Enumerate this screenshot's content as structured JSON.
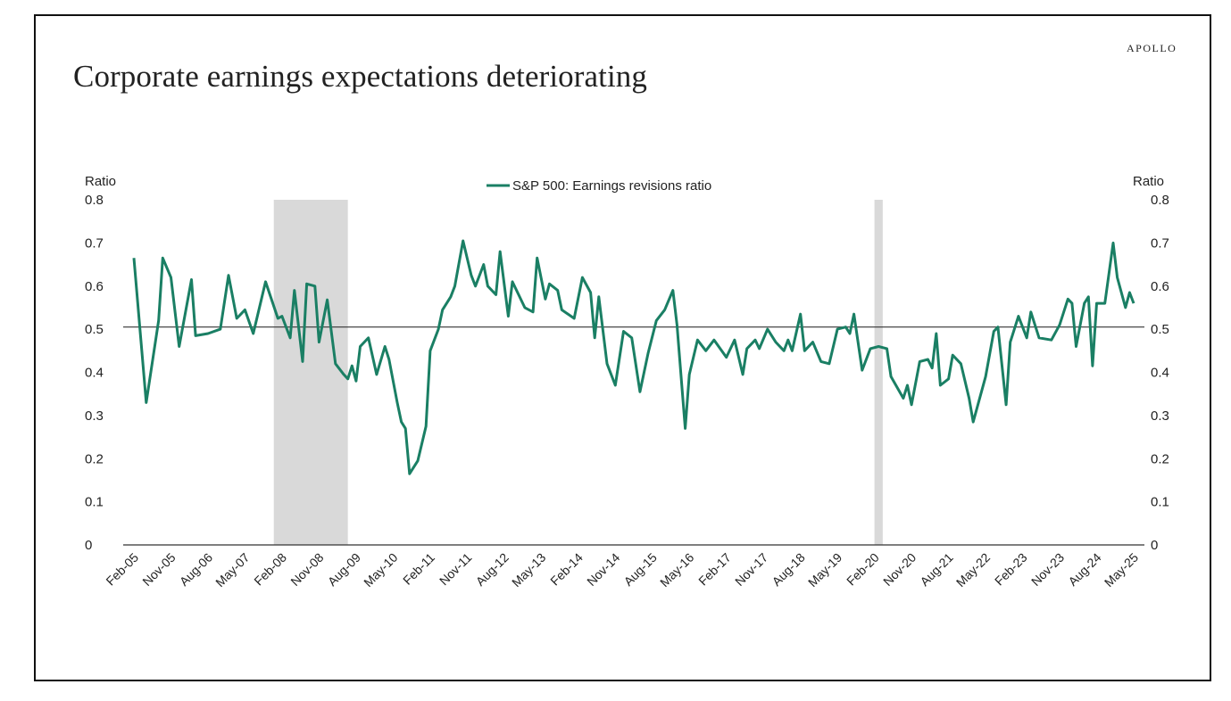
{
  "header": {
    "brand": "APOLLO",
    "title": "Corporate earnings expectations deteriorating"
  },
  "colors": {
    "line": "#1a7f64",
    "recession": "#d9d9d9",
    "axis": "#333333",
    "reference": "#333333"
  },
  "chart_data": {
    "type": "line",
    "title": "Corporate earnings expectations deteriorating",
    "ylabel_left": "Ratio",
    "ylabel_right": "Ratio",
    "ylim": [
      0,
      0.8
    ],
    "yticks": [
      "0.8",
      "0.7",
      "0.6",
      "0.5",
      "0.4",
      "0.3",
      "0.2",
      "0.1",
      "0"
    ],
    "xlim": [
      "2005-02",
      "2025-05"
    ],
    "xticks": [
      "Feb-05",
      "Nov-05",
      "Aug-06",
      "May-07",
      "Feb-08",
      "Nov-08",
      "Aug-09",
      "May-10",
      "Feb-11",
      "Nov-11",
      "Aug-12",
      "May-13",
      "Feb-14",
      "Nov-14",
      "Aug-15",
      "May-16",
      "Feb-17",
      "Nov-17",
      "Aug-18",
      "May-19",
      "Feb-20",
      "Nov-20",
      "Aug-21",
      "May-22",
      "Feb-23",
      "Nov-23",
      "Aug-24",
      "May-25"
    ],
    "reference_line": 0.505,
    "legend": {
      "position": "top-center"
    },
    "shaded_periods": [
      {
        "start": "2007-12",
        "end": "2009-06"
      },
      {
        "start": "2020-02",
        "end": "2020-04"
      }
    ],
    "grid": false,
    "series": [
      {
        "name": "S&P 500: Earnings revisions ratio",
        "points": [
          [
            "2005-02",
            0.665
          ],
          [
            "2005-05",
            0.33
          ],
          [
            "2005-08",
            0.52
          ],
          [
            "2005-09",
            0.665
          ],
          [
            "2005-11",
            0.62
          ],
          [
            "2006-01",
            0.46
          ],
          [
            "2006-04",
            0.615
          ],
          [
            "2006-05",
            0.485
          ],
          [
            "2006-08",
            0.49
          ],
          [
            "2006-11",
            0.5
          ],
          [
            "2007-01",
            0.625
          ],
          [
            "2007-03",
            0.525
          ],
          [
            "2007-05",
            0.545
          ],
          [
            "2007-07",
            0.49
          ],
          [
            "2007-10",
            0.61
          ],
          [
            "2008-01",
            0.525
          ],
          [
            "2008-02",
            0.53
          ],
          [
            "2008-04",
            0.48
          ],
          [
            "2008-05",
            0.59
          ],
          [
            "2008-07",
            0.425
          ],
          [
            "2008-08",
            0.605
          ],
          [
            "2008-10",
            0.6
          ],
          [
            "2008-11",
            0.47
          ],
          [
            "2009-01",
            0.568
          ],
          [
            "2009-03",
            0.42
          ],
          [
            "2009-05",
            0.395
          ],
          [
            "2009-06",
            0.385
          ],
          [
            "2009-07",
            0.415
          ],
          [
            "2009-08",
            0.38
          ],
          [
            "2009-09",
            0.46
          ],
          [
            "2009-11",
            0.48
          ],
          [
            "2010-01",
            0.395
          ],
          [
            "2010-03",
            0.46
          ],
          [
            "2010-04",
            0.43
          ],
          [
            "2010-06",
            0.33
          ],
          [
            "2010-07",
            0.285
          ],
          [
            "2010-08",
            0.27
          ],
          [
            "2010-09",
            0.165
          ],
          [
            "2010-11",
            0.195
          ],
          [
            "2011-01",
            0.275
          ],
          [
            "2011-02",
            0.45
          ],
          [
            "2011-04",
            0.5
          ],
          [
            "2011-05",
            0.545
          ],
          [
            "2011-07",
            0.575
          ],
          [
            "2011-08",
            0.6
          ],
          [
            "2011-10",
            0.705
          ],
          [
            "2011-12",
            0.625
          ],
          [
            "2012-01",
            0.6
          ],
          [
            "2012-03",
            0.65
          ],
          [
            "2012-04",
            0.6
          ],
          [
            "2012-06",
            0.58
          ],
          [
            "2012-07",
            0.68
          ],
          [
            "2012-09",
            0.53
          ],
          [
            "2012-10",
            0.61
          ],
          [
            "2013-01",
            0.55
          ],
          [
            "2013-03",
            0.54
          ],
          [
            "2013-04",
            0.665
          ],
          [
            "2013-06",
            0.57
          ],
          [
            "2013-07",
            0.605
          ],
          [
            "2013-09",
            0.59
          ],
          [
            "2013-10",
            0.545
          ],
          [
            "2014-01",
            0.525
          ],
          [
            "2014-03",
            0.62
          ],
          [
            "2014-05",
            0.585
          ],
          [
            "2014-06",
            0.48
          ],
          [
            "2014-07",
            0.575
          ],
          [
            "2014-09",
            0.42
          ],
          [
            "2014-11",
            0.37
          ],
          [
            "2015-01",
            0.495
          ],
          [
            "2015-03",
            0.48
          ],
          [
            "2015-05",
            0.355
          ],
          [
            "2015-07",
            0.445
          ],
          [
            "2015-09",
            0.52
          ],
          [
            "2015-11",
            0.545
          ],
          [
            "2016-01",
            0.59
          ],
          [
            "2016-02",
            0.51
          ],
          [
            "2016-04",
            0.27
          ],
          [
            "2016-05",
            0.395
          ],
          [
            "2016-07",
            0.475
          ],
          [
            "2016-09",
            0.45
          ],
          [
            "2016-11",
            0.475
          ],
          [
            "2017-02",
            0.435
          ],
          [
            "2017-04",
            0.475
          ],
          [
            "2017-06",
            0.395
          ],
          [
            "2017-07",
            0.455
          ],
          [
            "2017-09",
            0.475
          ],
          [
            "2017-10",
            0.455
          ],
          [
            "2017-12",
            0.5
          ],
          [
            "2018-02",
            0.47
          ],
          [
            "2018-04",
            0.45
          ],
          [
            "2018-05",
            0.475
          ],
          [
            "2018-06",
            0.45
          ],
          [
            "2018-08",
            0.535
          ],
          [
            "2018-09",
            0.45
          ],
          [
            "2018-11",
            0.47
          ],
          [
            "2019-01",
            0.425
          ],
          [
            "2019-03",
            0.42
          ],
          [
            "2019-05",
            0.5
          ],
          [
            "2019-07",
            0.505
          ],
          [
            "2019-08",
            0.49
          ],
          [
            "2019-09",
            0.535
          ],
          [
            "2019-11",
            0.405
          ],
          [
            "2020-01",
            0.455
          ],
          [
            "2020-03",
            0.46
          ],
          [
            "2020-05",
            0.455
          ],
          [
            "2020-06",
            0.39
          ],
          [
            "2020-09",
            0.34
          ],
          [
            "2020-10",
            0.37
          ],
          [
            "2020-11",
            0.325
          ],
          [
            "2021-01",
            0.425
          ],
          [
            "2021-03",
            0.43
          ],
          [
            "2021-04",
            0.41
          ],
          [
            "2021-05",
            0.49
          ],
          [
            "2021-06",
            0.37
          ],
          [
            "2021-08",
            0.385
          ],
          [
            "2021-09",
            0.44
          ],
          [
            "2021-11",
            0.42
          ],
          [
            "2022-01",
            0.34
          ],
          [
            "2022-02",
            0.285
          ],
          [
            "2022-05",
            0.39
          ],
          [
            "2022-07",
            0.495
          ],
          [
            "2022-08",
            0.505
          ],
          [
            "2022-10",
            0.325
          ],
          [
            "2022-11",
            0.47
          ],
          [
            "2023-01",
            0.53
          ],
          [
            "2023-03",
            0.48
          ],
          [
            "2023-04",
            0.54
          ],
          [
            "2023-06",
            0.48
          ],
          [
            "2023-09",
            0.475
          ],
          [
            "2023-11",
            0.51
          ],
          [
            "2024-01",
            0.57
          ],
          [
            "2024-02",
            0.56
          ],
          [
            "2024-03",
            0.46
          ],
          [
            "2024-05",
            0.56
          ],
          [
            "2024-06",
            0.575
          ],
          [
            "2024-07",
            0.415
          ],
          [
            "2024-08",
            0.56
          ],
          [
            "2024-10",
            0.56
          ],
          [
            "2024-12",
            0.7
          ],
          [
            "2025-01",
            0.62
          ],
          [
            "2025-03",
            0.55
          ],
          [
            "2025-04",
            0.585
          ],
          [
            "2025-05",
            0.56
          ]
        ]
      }
    ]
  }
}
